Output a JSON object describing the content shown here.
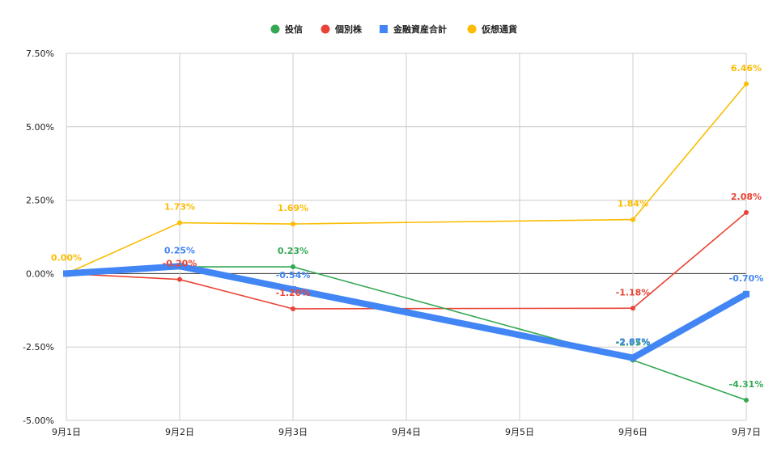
{
  "chart_data": {
    "type": "line",
    "title": "",
    "xlabel": "",
    "ylabel": "",
    "x": [
      "9月1日",
      "9月2日",
      "9月3日",
      "9月4日",
      "9月5日",
      "9月6日",
      "9月7日"
    ],
    "y_ticks": [
      "7.50%",
      "5.00%",
      "2.50%",
      "0.00%",
      "-2.50%",
      "-5.00%"
    ],
    "ylim": [
      -5.0,
      7.5
    ],
    "grid": true,
    "legend_position": "top",
    "series": [
      {
        "name": "投信",
        "color": "#34a853",
        "marker": "circle",
        "values": [
          0.0,
          0.23,
          0.23,
          null,
          null,
          -2.95,
          -4.31
        ],
        "labels": [
          "",
          "",
          "0.23%",
          "",
          "",
          "-2.95%",
          "-4.31%"
        ]
      },
      {
        "name": "個別株",
        "color": "#ea4335",
        "marker": "circle",
        "values": [
          0.0,
          -0.2,
          -1.2,
          null,
          null,
          -1.18,
          2.08
        ],
        "labels": [
          "",
          "-0.20%",
          "-1.20%",
          "",
          "",
          "-1.18%",
          "2.08%"
        ]
      },
      {
        "name": "金融資産合計",
        "color": "#4285f4",
        "marker": "square",
        "values": [
          0.0,
          0.25,
          -0.54,
          null,
          null,
          -2.87,
          -0.7
        ],
        "labels": [
          "",
          "0.25%",
          "-0.54%",
          "",
          "",
          "-2.87%",
          "-0.70%"
        ]
      },
      {
        "name": "仮想通貨",
        "color": "#fbbc04",
        "marker": "circle",
        "values": [
          0.0,
          1.73,
          1.69,
          null,
          null,
          1.84,
          6.46
        ],
        "labels": [
          "0.00%",
          "1.73%",
          "1.69%",
          "",
          "",
          "1.84%",
          "6.46%"
        ]
      }
    ]
  }
}
